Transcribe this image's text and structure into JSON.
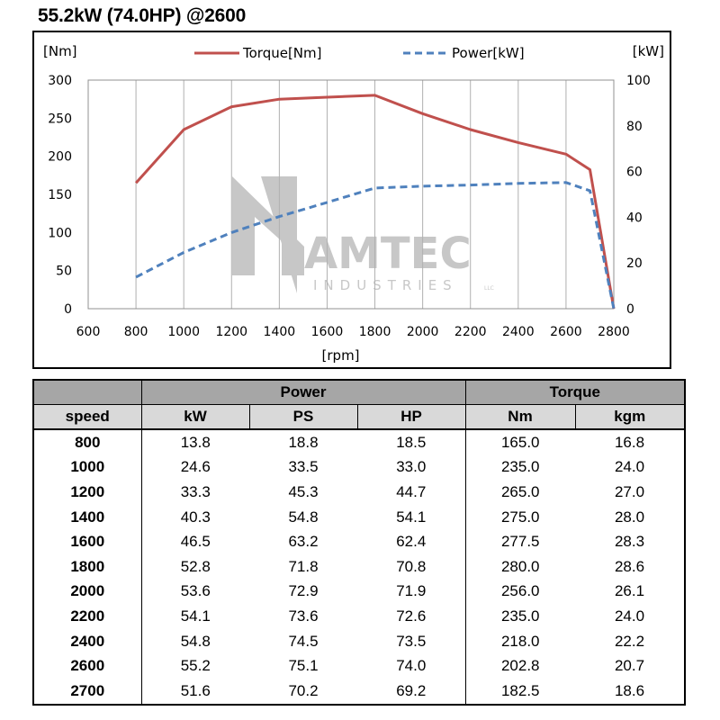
{
  "title": "55.2kW (74.0HP) @2600",
  "chart_data": {
    "type": "line",
    "x": [
      800,
      1000,
      1200,
      1400,
      1600,
      1800,
      2000,
      2200,
      2400,
      2600,
      2700,
      2800
    ],
    "series": [
      {
        "name": "Torque[Nm]",
        "axis": "left",
        "color": "#c0504d",
        "style": "solid",
        "values": [
          165.0,
          235.0,
          265.0,
          275.0,
          277.5,
          280.0,
          256.0,
          235.0,
          218.0,
          202.8,
          182.5,
          0
        ]
      },
      {
        "name": "Power[kW]",
        "axis": "right",
        "color": "#4f81bd",
        "style": "dashed",
        "values": [
          13.8,
          24.6,
          33.3,
          40.3,
          46.5,
          52.8,
          53.6,
          54.1,
          54.8,
          55.2,
          51.6,
          0
        ]
      }
    ],
    "xlabel": "[rpm]",
    "ylabel_left": "[Nm]",
    "ylabel_right": "[kW]",
    "xlim": [
      600,
      2800
    ],
    "ylim_left": [
      0,
      300
    ],
    "ylim_right": [
      0,
      100
    ],
    "x_ticks": [
      600,
      800,
      1000,
      1200,
      1400,
      1600,
      1800,
      2000,
      2200,
      2400,
      2600,
      2800
    ],
    "y_ticks_left": [
      0,
      50,
      100,
      150,
      200,
      250,
      300
    ],
    "y_ticks_right": [
      0,
      20,
      40,
      60,
      80,
      100
    ],
    "grid": "vertical",
    "legend_position": "top"
  },
  "watermark": {
    "brand": "AMTEC",
    "sub": "INDUSTRIES",
    "mark": "LLC"
  },
  "table": {
    "group_headers": [
      "",
      "Power",
      "Torque"
    ],
    "columns": [
      "speed",
      "kW",
      "PS",
      "HP",
      "Nm",
      "kgm"
    ],
    "rows": [
      [
        "800",
        "13.8",
        "18.8",
        "18.5",
        "165.0",
        "16.8"
      ],
      [
        "1000",
        "24.6",
        "33.5",
        "33.0",
        "235.0",
        "24.0"
      ],
      [
        "1200",
        "33.3",
        "45.3",
        "44.7",
        "265.0",
        "27.0"
      ],
      [
        "1400",
        "40.3",
        "54.8",
        "54.1",
        "275.0",
        "28.0"
      ],
      [
        "1600",
        "46.5",
        "63.2",
        "62.4",
        "277.5",
        "28.3"
      ],
      [
        "1800",
        "52.8",
        "71.8",
        "70.8",
        "280.0",
        "28.6"
      ],
      [
        "2000",
        "53.6",
        "72.9",
        "71.9",
        "256.0",
        "26.1"
      ],
      [
        "2200",
        "54.1",
        "73.6",
        "72.6",
        "235.0",
        "24.0"
      ],
      [
        "2400",
        "54.8",
        "74.5",
        "73.5",
        "218.0",
        "22.2"
      ],
      [
        "2600",
        "55.2",
        "75.1",
        "74.0",
        "202.8",
        "20.7"
      ],
      [
        "2700",
        "51.6",
        "70.2",
        "69.2",
        "182.5",
        "18.6"
      ]
    ]
  }
}
